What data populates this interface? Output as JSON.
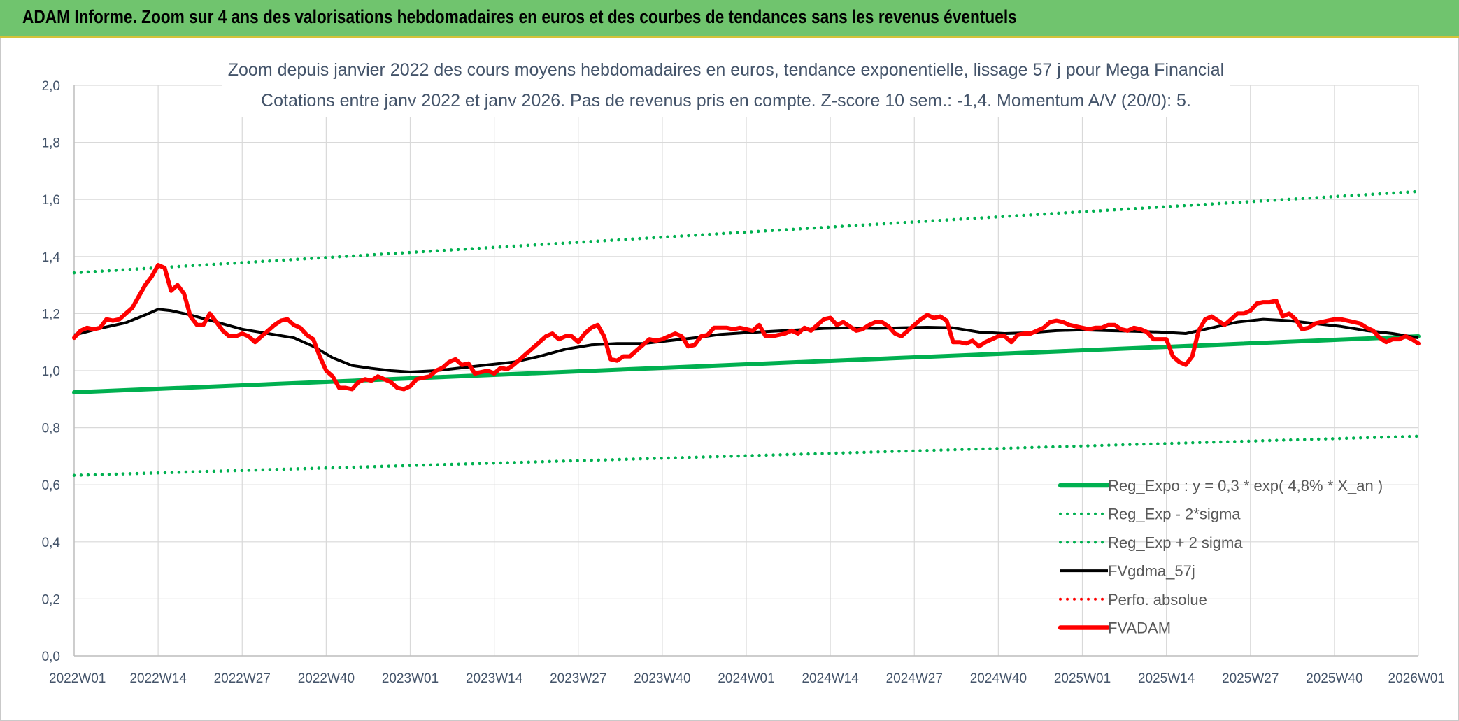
{
  "banner": {
    "title": "ADAM Informe. Zoom sur 4 ans des valorisations hebdomadaires en euros et des courbes de tendances sans les revenus éventuels"
  },
  "chart_data": {
    "type": "line",
    "title_line1": "Zoom depuis janvier 2022 des cours moyens hebdomadaires en euros, tendance exponentielle, lissage 57 j pour Mega Financial",
    "title_line2": "Cotations entre janv 2022 et janv 2026. Pas de revenus pris en compte. Z-score 10 sem.: -1,4. Momentum A/V (20/0): 5.",
    "x_unit": "weeks since 2022W01",
    "x_range": [
      0,
      208
    ],
    "x_ticks": [
      {
        "label": "2022W01",
        "x": 0
      },
      {
        "label": "2022W14",
        "x": 13
      },
      {
        "label": "2022W27",
        "x": 26
      },
      {
        "label": "2022W40",
        "x": 39
      },
      {
        "label": "2023W01",
        "x": 52
      },
      {
        "label": "2023W14",
        "x": 65
      },
      {
        "label": "2023W27",
        "x": 78
      },
      {
        "label": "2023W40",
        "x": 91
      },
      {
        "label": "2024W01",
        "x": 104
      },
      {
        "label": "2024W14",
        "x": 117
      },
      {
        "label": "2024W27",
        "x": 130
      },
      {
        "label": "2024W40",
        "x": 143
      },
      {
        "label": "2025W01",
        "x": 156
      },
      {
        "label": "2025W14",
        "x": 169
      },
      {
        "label": "2025W27",
        "x": 182
      },
      {
        "label": "2025W40",
        "x": 195
      },
      {
        "label": "2026W01",
        "x": 208
      }
    ],
    "ylim": [
      0,
      2.0
    ],
    "y_ticks": [
      "0,0",
      "0,2",
      "0,4",
      "0,6",
      "0,8",
      "1,0",
      "1,2",
      "1,4",
      "1,6",
      "1,8",
      "2,0"
    ],
    "grid": true,
    "legend_position": "bottom-right",
    "series": [
      {
        "name": "Reg_Expo : y = 0,3 * exp( 4,8% *  X_an )",
        "color": "#00b050",
        "style": "solid-thick",
        "points": [
          [
            0,
            0.924
          ],
          [
            208,
            1.12
          ]
        ]
      },
      {
        "name": "Reg_Exp - 2*sigma",
        "color": "#00b050",
        "style": "dotted",
        "points": [
          [
            0,
            0.633
          ],
          [
            208,
            0.77
          ]
        ]
      },
      {
        "name": "Reg_Exp + 2 sigma",
        "color": "#00b050",
        "style": "dotted",
        "points": [
          [
            0,
            1.343
          ],
          [
            208,
            1.628
          ]
        ]
      },
      {
        "name": "FVgdma_57j",
        "color": "#000000",
        "style": "solid",
        "points": [
          [
            0,
            1.125
          ],
          [
            4,
            1.148
          ],
          [
            8,
            1.168
          ],
          [
            11,
            1.195
          ],
          [
            13,
            1.215
          ],
          [
            15,
            1.21
          ],
          [
            18,
            1.195
          ],
          [
            22,
            1.17
          ],
          [
            26,
            1.145
          ],
          [
            30,
            1.13
          ],
          [
            34,
            1.115
          ],
          [
            37,
            1.085
          ],
          [
            40,
            1.045
          ],
          [
            43,
            1.018
          ],
          [
            46,
            1.008
          ],
          [
            49,
            1.0
          ],
          [
            52,
            0.995
          ],
          [
            56,
            1.0
          ],
          [
            60,
            1.01
          ],
          [
            64,
            1.02
          ],
          [
            68,
            1.03
          ],
          [
            72,
            1.05
          ],
          [
            76,
            1.075
          ],
          [
            80,
            1.09
          ],
          [
            84,
            1.095
          ],
          [
            88,
            1.095
          ],
          [
            92,
            1.105
          ],
          [
            96,
            1.115
          ],
          [
            100,
            1.127
          ],
          [
            104,
            1.133
          ],
          [
            108,
            1.138
          ],
          [
            112,
            1.143
          ],
          [
            116,
            1.148
          ],
          [
            120,
            1.15
          ],
          [
            124,
            1.148
          ],
          [
            128,
            1.15
          ],
          [
            132,
            1.152
          ],
          [
            136,
            1.15
          ],
          [
            140,
            1.135
          ],
          [
            144,
            1.13
          ],
          [
            148,
            1.133
          ],
          [
            152,
            1.14
          ],
          [
            156,
            1.143
          ],
          [
            160,
            1.14
          ],
          [
            164,
            1.138
          ],
          [
            168,
            1.135
          ],
          [
            172,
            1.13
          ],
          [
            176,
            1.15
          ],
          [
            180,
            1.17
          ],
          [
            184,
            1.18
          ],
          [
            188,
            1.175
          ],
          [
            192,
            1.165
          ],
          [
            196,
            1.155
          ],
          [
            200,
            1.14
          ],
          [
            204,
            1.13
          ],
          [
            208,
            1.115
          ]
        ]
      },
      {
        "name": "Perfo. absolue",
        "color": "#ff0000",
        "style": "dotted",
        "points": []
      },
      {
        "name": "FVADAM",
        "color": "#ff0000",
        "style": "solid-thick",
        "points": [
          [
            0,
            1.115
          ],
          [
            1,
            1.14
          ],
          [
            2,
            1.15
          ],
          [
            3,
            1.145
          ],
          [
            4,
            1.15
          ],
          [
            5,
            1.18
          ],
          [
            6,
            1.175
          ],
          [
            7,
            1.18
          ],
          [
            8,
            1.2
          ],
          [
            9,
            1.22
          ],
          [
            10,
            1.26
          ],
          [
            11,
            1.3
          ],
          [
            12,
            1.33
          ],
          [
            13,
            1.37
          ],
          [
            14,
            1.36
          ],
          [
            15,
            1.28
          ],
          [
            16,
            1.3
          ],
          [
            17,
            1.27
          ],
          [
            18,
            1.19
          ],
          [
            19,
            1.16
          ],
          [
            20,
            1.16
          ],
          [
            21,
            1.2
          ],
          [
            22,
            1.17
          ],
          [
            23,
            1.14
          ],
          [
            24,
            1.12
          ],
          [
            25,
            1.12
          ],
          [
            26,
            1.13
          ],
          [
            27,
            1.12
          ],
          [
            28,
            1.1
          ],
          [
            29,
            1.12
          ],
          [
            30,
            1.14
          ],
          [
            31,
            1.16
          ],
          [
            32,
            1.175
          ],
          [
            33,
            1.18
          ],
          [
            34,
            1.16
          ],
          [
            35,
            1.15
          ],
          [
            36,
            1.125
          ],
          [
            37,
            1.11
          ],
          [
            38,
            1.05
          ],
          [
            39,
            1.0
          ],
          [
            40,
            0.98
          ],
          [
            41,
            0.94
          ],
          [
            42,
            0.94
          ],
          [
            43,
            0.935
          ],
          [
            44,
            0.96
          ],
          [
            45,
            0.97
          ],
          [
            46,
            0.965
          ],
          [
            47,
            0.98
          ],
          [
            48,
            0.97
          ],
          [
            49,
            0.96
          ],
          [
            50,
            0.94
          ],
          [
            51,
            0.935
          ],
          [
            52,
            0.945
          ],
          [
            53,
            0.97
          ],
          [
            54,
            0.975
          ],
          [
            55,
            0.98
          ],
          [
            56,
            1.0
          ],
          [
            57,
            1.01
          ],
          [
            58,
            1.03
          ],
          [
            59,
            1.04
          ],
          [
            60,
            1.02
          ],
          [
            61,
            1.025
          ],
          [
            62,
            0.99
          ],
          [
            63,
            0.995
          ],
          [
            64,
            1.0
          ],
          [
            65,
            0.99
          ],
          [
            66,
            1.01
          ],
          [
            67,
            1.005
          ],
          [
            68,
            1.02
          ],
          [
            69,
            1.04
          ],
          [
            70,
            1.06
          ],
          [
            71,
            1.08
          ],
          [
            72,
            1.1
          ],
          [
            73,
            1.12
          ],
          [
            74,
            1.13
          ],
          [
            75,
            1.11
          ],
          [
            76,
            1.12
          ],
          [
            77,
            1.12
          ],
          [
            78,
            1.1
          ],
          [
            79,
            1.13
          ],
          [
            80,
            1.15
          ],
          [
            81,
            1.16
          ],
          [
            82,
            1.12
          ],
          [
            83,
            1.04
          ],
          [
            84,
            1.035
          ],
          [
            85,
            1.05
          ],
          [
            86,
            1.05
          ],
          [
            87,
            1.07
          ],
          [
            88,
            1.09
          ],
          [
            89,
            1.11
          ],
          [
            90,
            1.105
          ],
          [
            91,
            1.11
          ],
          [
            92,
            1.12
          ],
          [
            93,
            1.13
          ],
          [
            94,
            1.12
          ],
          [
            95,
            1.085
          ],
          [
            96,
            1.09
          ],
          [
            97,
            1.12
          ],
          [
            98,
            1.125
          ],
          [
            99,
            1.15
          ],
          [
            100,
            1.15
          ],
          [
            101,
            1.15
          ],
          [
            102,
            1.145
          ],
          [
            103,
            1.15
          ],
          [
            104,
            1.145
          ],
          [
            105,
            1.14
          ],
          [
            106,
            1.16
          ],
          [
            107,
            1.12
          ],
          [
            108,
            1.12
          ],
          [
            109,
            1.125
          ],
          [
            110,
            1.13
          ],
          [
            111,
            1.14
          ],
          [
            112,
            1.13
          ],
          [
            113,
            1.15
          ],
          [
            114,
            1.14
          ],
          [
            115,
            1.16
          ],
          [
            116,
            1.18
          ],
          [
            117,
            1.185
          ],
          [
            118,
            1.16
          ],
          [
            119,
            1.17
          ],
          [
            120,
            1.155
          ],
          [
            121,
            1.14
          ],
          [
            122,
            1.145
          ],
          [
            123,
            1.16
          ],
          [
            124,
            1.17
          ],
          [
            125,
            1.17
          ],
          [
            126,
            1.155
          ],
          [
            127,
            1.13
          ],
          [
            128,
            1.12
          ],
          [
            129,
            1.14
          ],
          [
            130,
            1.16
          ],
          [
            131,
            1.18
          ],
          [
            132,
            1.195
          ],
          [
            133,
            1.185
          ],
          [
            134,
            1.19
          ],
          [
            135,
            1.175
          ],
          [
            136,
            1.1
          ],
          [
            137,
            1.1
          ],
          [
            138,
            1.095
          ],
          [
            139,
            1.105
          ],
          [
            140,
            1.085
          ],
          [
            141,
            1.1
          ],
          [
            142,
            1.11
          ],
          [
            143,
            1.12
          ],
          [
            144,
            1.12
          ],
          [
            145,
            1.1
          ],
          [
            146,
            1.125
          ],
          [
            147,
            1.13
          ],
          [
            148,
            1.13
          ],
          [
            149,
            1.14
          ],
          [
            150,
            1.15
          ],
          [
            151,
            1.17
          ],
          [
            152,
            1.175
          ],
          [
            153,
            1.17
          ],
          [
            154,
            1.16
          ],
          [
            155,
            1.155
          ],
          [
            156,
            1.15
          ],
          [
            157,
            1.145
          ],
          [
            158,
            1.15
          ],
          [
            159,
            1.15
          ],
          [
            160,
            1.16
          ],
          [
            161,
            1.16
          ],
          [
            162,
            1.145
          ],
          [
            163,
            1.14
          ],
          [
            164,
            1.15
          ],
          [
            165,
            1.145
          ],
          [
            166,
            1.135
          ],
          [
            167,
            1.11
          ],
          [
            168,
            1.11
          ],
          [
            169,
            1.11
          ],
          [
            170,
            1.05
          ],
          [
            171,
            1.03
          ],
          [
            172,
            1.02
          ],
          [
            173,
            1.05
          ],
          [
            174,
            1.14
          ],
          [
            175,
            1.18
          ],
          [
            176,
            1.19
          ],
          [
            177,
            1.175
          ],
          [
            178,
            1.16
          ],
          [
            179,
            1.18
          ],
          [
            180,
            1.2
          ],
          [
            181,
            1.2
          ],
          [
            182,
            1.21
          ],
          [
            183,
            1.235
          ],
          [
            184,
            1.24
          ],
          [
            185,
            1.24
          ],
          [
            186,
            1.245
          ],
          [
            187,
            1.19
          ],
          [
            188,
            1.2
          ],
          [
            189,
            1.18
          ],
          [
            190,
            1.145
          ],
          [
            191,
            1.15
          ],
          [
            192,
            1.165
          ],
          [
            193,
            1.17
          ],
          [
            194,
            1.175
          ],
          [
            195,
            1.18
          ],
          [
            196,
            1.18
          ],
          [
            197,
            1.175
          ],
          [
            198,
            1.17
          ],
          [
            199,
            1.165
          ],
          [
            200,
            1.15
          ],
          [
            201,
            1.14
          ],
          [
            202,
            1.115
          ],
          [
            203,
            1.1
          ],
          [
            204,
            1.11
          ],
          [
            205,
            1.11
          ],
          [
            206,
            1.12
          ],
          [
            207,
            1.11
          ],
          [
            208,
            1.095
          ]
        ]
      }
    ]
  }
}
